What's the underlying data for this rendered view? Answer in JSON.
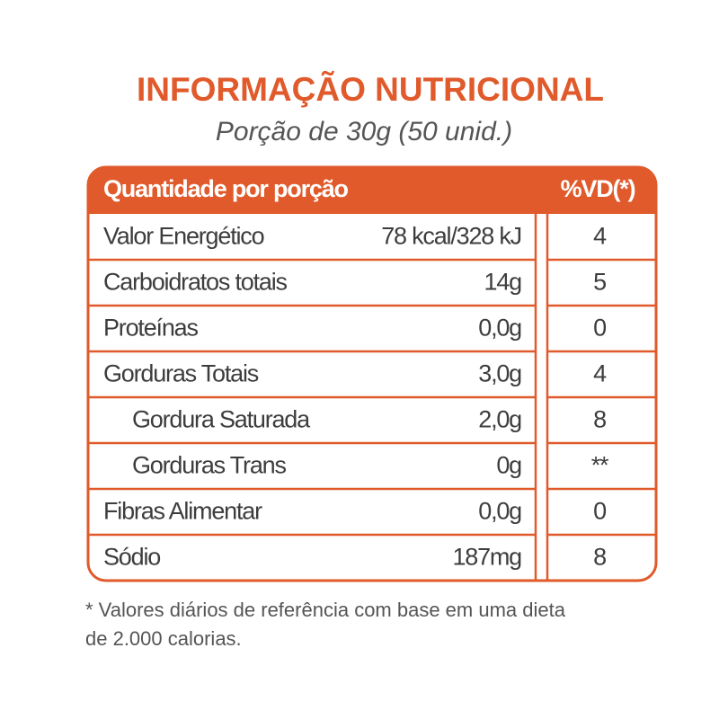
{
  "header": {
    "title": "INFORMAÇÃO NUTRICIONAL",
    "subtitle": "Porção de 30g (50 unid.)"
  },
  "table": {
    "columns": [
      "Quantidade por porção",
      "%VD(*)"
    ],
    "rows": [
      [
        "Valor Energético",
        "78 kcal/328 kJ",
        "4"
      ],
      [
        "Carboidratos totais",
        "14g",
        "5"
      ],
      [
        "Proteínas",
        "0,0g",
        "0"
      ],
      [
        "Gorduras Totais",
        "3,0g",
        "4"
      ],
      [
        "Gordura Saturada",
        "2,0g",
        "8"
      ],
      [
        "Gorduras Trans",
        "0g",
        "**"
      ],
      [
        "Fibras Alimentar",
        "0,0g",
        "0"
      ],
      [
        "Sódio",
        "187mg",
        "8"
      ]
    ]
  },
  "footnote": [
    "* Valores diários de referência com base em uma dieta",
    "de 2.000 calorias."
  ]
}
